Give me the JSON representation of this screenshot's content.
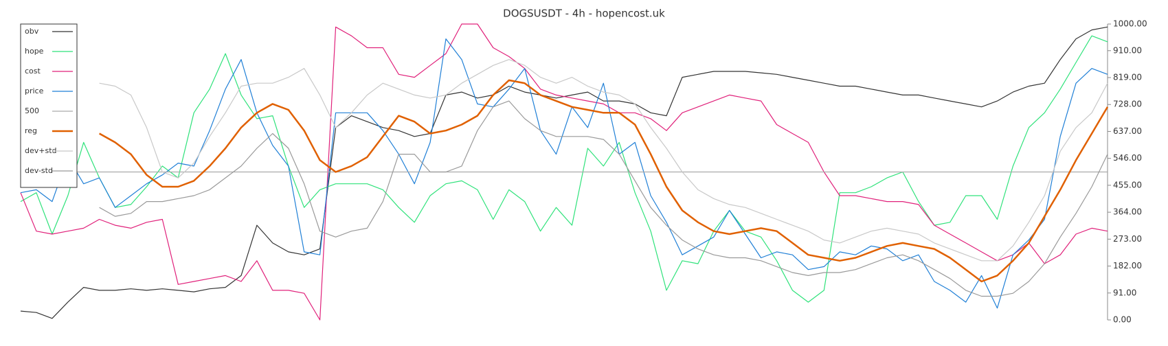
{
  "chart_data": {
    "type": "line",
    "title": "DOGSUSDT - 4h - hopencost.uk",
    "ylim": [
      0,
      1000
    ],
    "yticks": [
      {
        "value": 0,
        "label": "0.00"
      },
      {
        "value": 91,
        "label": "91.00"
      },
      {
        "value": 182,
        "label": "182.00"
      },
      {
        "value": 273,
        "label": "273.00"
      },
      {
        "value": 364,
        "label": "364.00"
      },
      {
        "value": 455,
        "label": "455.00"
      },
      {
        "value": 546,
        "label": "546.00"
      },
      {
        "value": 637,
        "label": "637.00"
      },
      {
        "value": 728,
        "label": "728.00"
      },
      {
        "value": 819,
        "label": "819.00"
      },
      {
        "value": 910,
        "label": "910.00"
      },
      {
        "value": 1000,
        "label": "1000.00"
      }
    ],
    "y_axis_side": "right",
    "grid": false,
    "legend": "upper left",
    "series": [
      {
        "name": "obv",
        "color": "#333333",
        "values": [
          30,
          25,
          5,
          60,
          110,
          100,
          100,
          105,
          100,
          105,
          100,
          95,
          105,
          110,
          150,
          320,
          260,
          230,
          220,
          240,
          650,
          690,
          670,
          650,
          640,
          620,
          630,
          760,
          770,
          750,
          760,
          790,
          770,
          760,
          750,
          760,
          770,
          740,
          740,
          730,
          700,
          690,
          820,
          830,
          840,
          840,
          840,
          835,
          830,
          820,
          810,
          800,
          790,
          790,
          780,
          770,
          760,
          760,
          750,
          740,
          730,
          720,
          740,
          770,
          790,
          800,
          880,
          950,
          980,
          990
        ]
      },
      {
        "name": "hope",
        "color": "#2ee27a",
        "values": [
          400,
          430,
          290,
          420,
          600,
          480,
          380,
          390,
          450,
          520,
          480,
          700,
          780,
          900,
          760,
          680,
          690,
          520,
          380,
          440,
          460,
          460,
          460,
          440,
          380,
          330,
          420,
          460,
          470,
          440,
          340,
          440,
          400,
          300,
          380,
          320,
          580,
          520,
          600,
          430,
          300,
          100,
          200,
          190,
          300,
          370,
          300,
          280,
          200,
          100,
          60,
          100,
          430,
          430,
          450,
          480,
          500,
          400,
          320,
          330,
          420,
          420,
          340,
          520,
          650,
          700,
          780,
          870,
          960,
          940
        ]
      },
      {
        "name": "cost",
        "color": "#e0207a",
        "values": [
          430,
          300,
          290,
          300,
          310,
          340,
          320,
          310,
          330,
          340,
          120,
          130,
          140,
          150,
          130,
          200,
          100,
          100,
          90,
          0,
          990,
          960,
          920,
          920,
          830,
          820,
          860,
          900,
          1000,
          1000,
          920,
          890,
          850,
          780,
          760,
          750,
          740,
          730,
          700,
          700,
          680,
          640,
          700,
          720,
          740,
          760,
          750,
          740,
          660,
          630,
          600,
          500,
          420,
          420,
          410,
          400,
          400,
          390,
          320,
          290,
          260,
          230,
          200,
          220,
          260,
          190,
          220,
          290,
          310,
          300
        ]
      },
      {
        "name": "price",
        "color": "#1f7fd6",
        "values": [
          430,
          440,
          400,
          550,
          460,
          480,
          380,
          420,
          460,
          490,
          530,
          520,
          640,
          780,
          880,
          700,
          590,
          520,
          230,
          220,
          700,
          700,
          700,
          640,
          560,
          460,
          600,
          950,
          880,
          730,
          720,
          780,
          850,
          640,
          560,
          720,
          650,
          800,
          560,
          600,
          420,
          330,
          220,
          250,
          280,
          370,
          290,
          210,
          230,
          220,
          170,
          180,
          230,
          220,
          250,
          240,
          200,
          220,
          130,
          100,
          60,
          150,
          40,
          220,
          270,
          340,
          620,
          800,
          850,
          830
        ]
      },
      {
        "name": "500",
        "color": "#aaaaaa",
        "values": [
          500,
          500,
          500,
          500,
          500,
          500,
          500,
          500,
          500,
          500,
          500,
          500,
          500,
          500,
          500,
          500,
          500,
          500,
          500,
          500,
          500,
          500,
          500,
          500,
          500,
          500,
          500,
          500,
          500,
          500,
          500,
          500,
          500,
          500,
          500,
          500,
          500,
          500,
          500,
          500,
          500,
          500,
          500,
          500,
          500,
          500,
          500,
          500,
          500,
          500,
          500,
          500,
          500,
          500,
          500,
          500,
          500,
          500,
          500,
          500,
          500,
          500,
          500,
          500,
          500,
          500,
          500,
          500,
          500,
          500
        ]
      },
      {
        "name": "reg",
        "color": "#e06000",
        "values": [
          null,
          null,
          null,
          null,
          null,
          630,
          600,
          560,
          490,
          450,
          450,
          470,
          520,
          580,
          650,
          700,
          730,
          710,
          640,
          540,
          500,
          520,
          550,
          620,
          690,
          670,
          630,
          640,
          660,
          690,
          760,
          810,
          800,
          760,
          740,
          720,
          710,
          700,
          700,
          660,
          560,
          450,
          370,
          330,
          300,
          290,
          300,
          310,
          300,
          260,
          220,
          210,
          200,
          210,
          230,
          250,
          260,
          250,
          240,
          210,
          170,
          130,
          150,
          200,
          260,
          350,
          440,
          540,
          630,
          720
        ]
      },
      {
        "name": "dev+std",
        "color": "#c8c8c8",
        "values": [
          null,
          null,
          null,
          null,
          null,
          800,
          790,
          760,
          650,
          500,
          480,
          530,
          620,
          700,
          790,
          800,
          800,
          820,
          850,
          760,
          650,
          700,
          760,
          800,
          780,
          760,
          750,
          760,
          800,
          830,
          860,
          880,
          860,
          820,
          800,
          820,
          790,
          770,
          760,
          730,
          650,
          580,
          500,
          440,
          410,
          390,
          380,
          360,
          340,
          320,
          300,
          270,
          260,
          280,
          300,
          310,
          300,
          290,
          260,
          240,
          220,
          200,
          200,
          250,
          330,
          420,
          570,
          650,
          700,
          800
        ]
      },
      {
        "name": "dev-std",
        "color": "#999999",
        "values": [
          null,
          null,
          null,
          null,
          null,
          380,
          350,
          360,
          400,
          400,
          410,
          420,
          440,
          480,
          520,
          580,
          630,
          580,
          460,
          300,
          280,
          300,
          310,
          400,
          560,
          560,
          500,
          500,
          520,
          640,
          720,
          740,
          680,
          640,
          620,
          620,
          620,
          610,
          560,
          470,
          380,
          320,
          270,
          240,
          220,
          210,
          210,
          200,
          180,
          160,
          150,
          160,
          160,
          170,
          190,
          210,
          220,
          200,
          170,
          140,
          100,
          80,
          80,
          90,
          130,
          190,
          280,
          360,
          450,
          560
        ]
      }
    ]
  }
}
